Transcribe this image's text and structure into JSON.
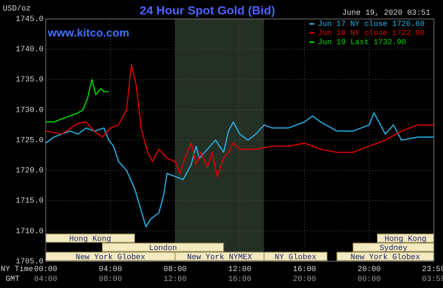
{
  "chart_data": {
    "type": "line",
    "title": "24 Hour Spot Gold (Bid)",
    "subtitle": "www.kitco.com",
    "y_label": "USD/oz",
    "timestamp": "June 19, 2020 03:51",
    "x_row_labels": [
      "NY Time",
      "GMT"
    ],
    "xlim": [
      0,
      24
    ],
    "ylim": [
      1705,
      1745
    ],
    "yticks": [
      {
        "value": 1705,
        "label": "1705.0"
      },
      {
        "value": 1710,
        "label": "1710.0"
      },
      {
        "value": 1715,
        "label": "1715.0"
      },
      {
        "value": 1720,
        "label": "1720.0"
      },
      {
        "value": 1725,
        "label": "1725.0"
      },
      {
        "value": 1730,
        "label": "1730.0"
      },
      {
        "value": 1735,
        "label": "1735.0"
      },
      {
        "value": 1740,
        "label": "1740.0"
      },
      {
        "value": 1745,
        "label": "1745.0"
      }
    ],
    "xticks": [
      {
        "value": 0,
        "label": "00:00"
      },
      {
        "value": 4,
        "label": "04:00"
      },
      {
        "value": 8,
        "label": "08:00"
      },
      {
        "value": 12,
        "label": "12:00"
      },
      {
        "value": 16,
        "label": "16:00"
      },
      {
        "value": 20,
        "label": "20:00"
      },
      {
        "value": 23.983,
        "label": "23:59"
      }
    ],
    "x2ticks": [
      {
        "value": 0,
        "label": "04:00"
      },
      {
        "value": 4,
        "label": "08:00"
      },
      {
        "value": 8,
        "label": "12:00"
      },
      {
        "value": 12,
        "label": "16:00"
      },
      {
        "value": 16,
        "label": "20:00"
      },
      {
        "value": 20,
        "label": "00:00"
      },
      {
        "value": 23.983,
        "label": "03:59"
      }
    ],
    "grid": true,
    "shaded": [
      8,
      13.5
    ],
    "sessions": [
      {
        "name": "Hong Kong",
        "start": 0,
        "end": 5.5,
        "row": 0
      },
      {
        "name": "Hong Kong",
        "start": 20.5,
        "end": 24,
        "row": 0
      },
      {
        "name": "London",
        "start": 3.5,
        "end": 11,
        "row": 1
      },
      {
        "name": "Sydney",
        "start": 19,
        "end": 24,
        "row": 1
      },
      {
        "name": "New York Globex",
        "start": 0,
        "end": 8,
        "row": 2
      },
      {
        "name": "New York NYMEX",
        "start": 8,
        "end": 13.5,
        "row": 2
      },
      {
        "name": "NY Globex",
        "start": 13.5,
        "end": 17.4,
        "row": 2
      },
      {
        "name": "New York Globex",
        "start": 18,
        "end": 24,
        "row": 2
      }
    ],
    "series": [
      {
        "name": "Jun 17 NY close 1726.60",
        "color": "#2ab4ea",
        "x": [
          0,
          0.5,
          1,
          1.5,
          2,
          2.5,
          3,
          3.6,
          3.9,
          4.2,
          4.5,
          5,
          5.5,
          6,
          6.2,
          6.5,
          7,
          7.3,
          7.5,
          8,
          8.5,
          9,
          9.3,
          9.5,
          10,
          10.5,
          11,
          11.3,
          11.6,
          12,
          12.5,
          13,
          13.5,
          14,
          15,
          16,
          16.5,
          17,
          18,
          19,
          20,
          20.3,
          21,
          21.5,
          22,
          23,
          24
        ],
        "values": [
          1724.5,
          1725.5,
          1726,
          1726.5,
          1726,
          1727,
          1726.5,
          1727,
          1725,
          1724,
          1721.5,
          1720,
          1717,
          1712.5,
          1710.7,
          1712,
          1713,
          1716,
          1719.5,
          1719,
          1718.5,
          1721,
          1724,
          1722,
          1723.5,
          1725,
          1723,
          1726.5,
          1728,
          1726,
          1725,
          1726,
          1727.5,
          1727,
          1727,
          1728,
          1729,
          1728,
          1726.5,
          1726.5,
          1727.5,
          1729.5,
          1726,
          1727.5,
          1725,
          1725.5,
          1725.5
        ]
      },
      {
        "name": "Jun 18 NY close 1722.90",
        "color": "#e00000",
        "x": [
          0,
          1,
          2,
          2.5,
          3,
          3.5,
          4,
          4.5,
          5,
          5.3,
          5.6,
          5.9,
          6.3,
          6.6,
          7,
          7.5,
          8,
          8.3,
          8.6,
          9,
          9.3,
          9.6,
          10,
          10.3,
          10.6,
          11,
          11.3,
          11.6,
          12,
          13,
          14,
          15,
          16,
          17,
          18,
          19,
          20,
          21,
          22,
          23,
          24
        ],
        "values": [
          1726.5,
          1726,
          1727.8,
          1728,
          1726.5,
          1725.5,
          1727,
          1727.5,
          1730,
          1737.5,
          1734,
          1727,
          1723,
          1721.5,
          1723.5,
          1722,
          1721.5,
          1719.5,
          1722,
          1724.5,
          1721,
          1723,
          1720.5,
          1723,
          1719,
          1722,
          1723,
          1724.5,
          1723.5,
          1723.5,
          1724,
          1724,
          1724.5,
          1723.5,
          1723,
          1723,
          1724,
          1725,
          1726.5,
          1727.5,
          1727.5
        ]
      },
      {
        "name": "Jun 19 Last 1732.90",
        "color": "#00dd00",
        "x": [
          0,
          0.5,
          1,
          1.5,
          2,
          2.3,
          2.6,
          2.85,
          3.1,
          3.4,
          3.6,
          3.9
        ],
        "values": [
          1728,
          1728,
          1728.5,
          1729,
          1729.5,
          1730,
          1732,
          1735,
          1732.5,
          1733.5,
          1733,
          1733
        ]
      }
    ]
  }
}
